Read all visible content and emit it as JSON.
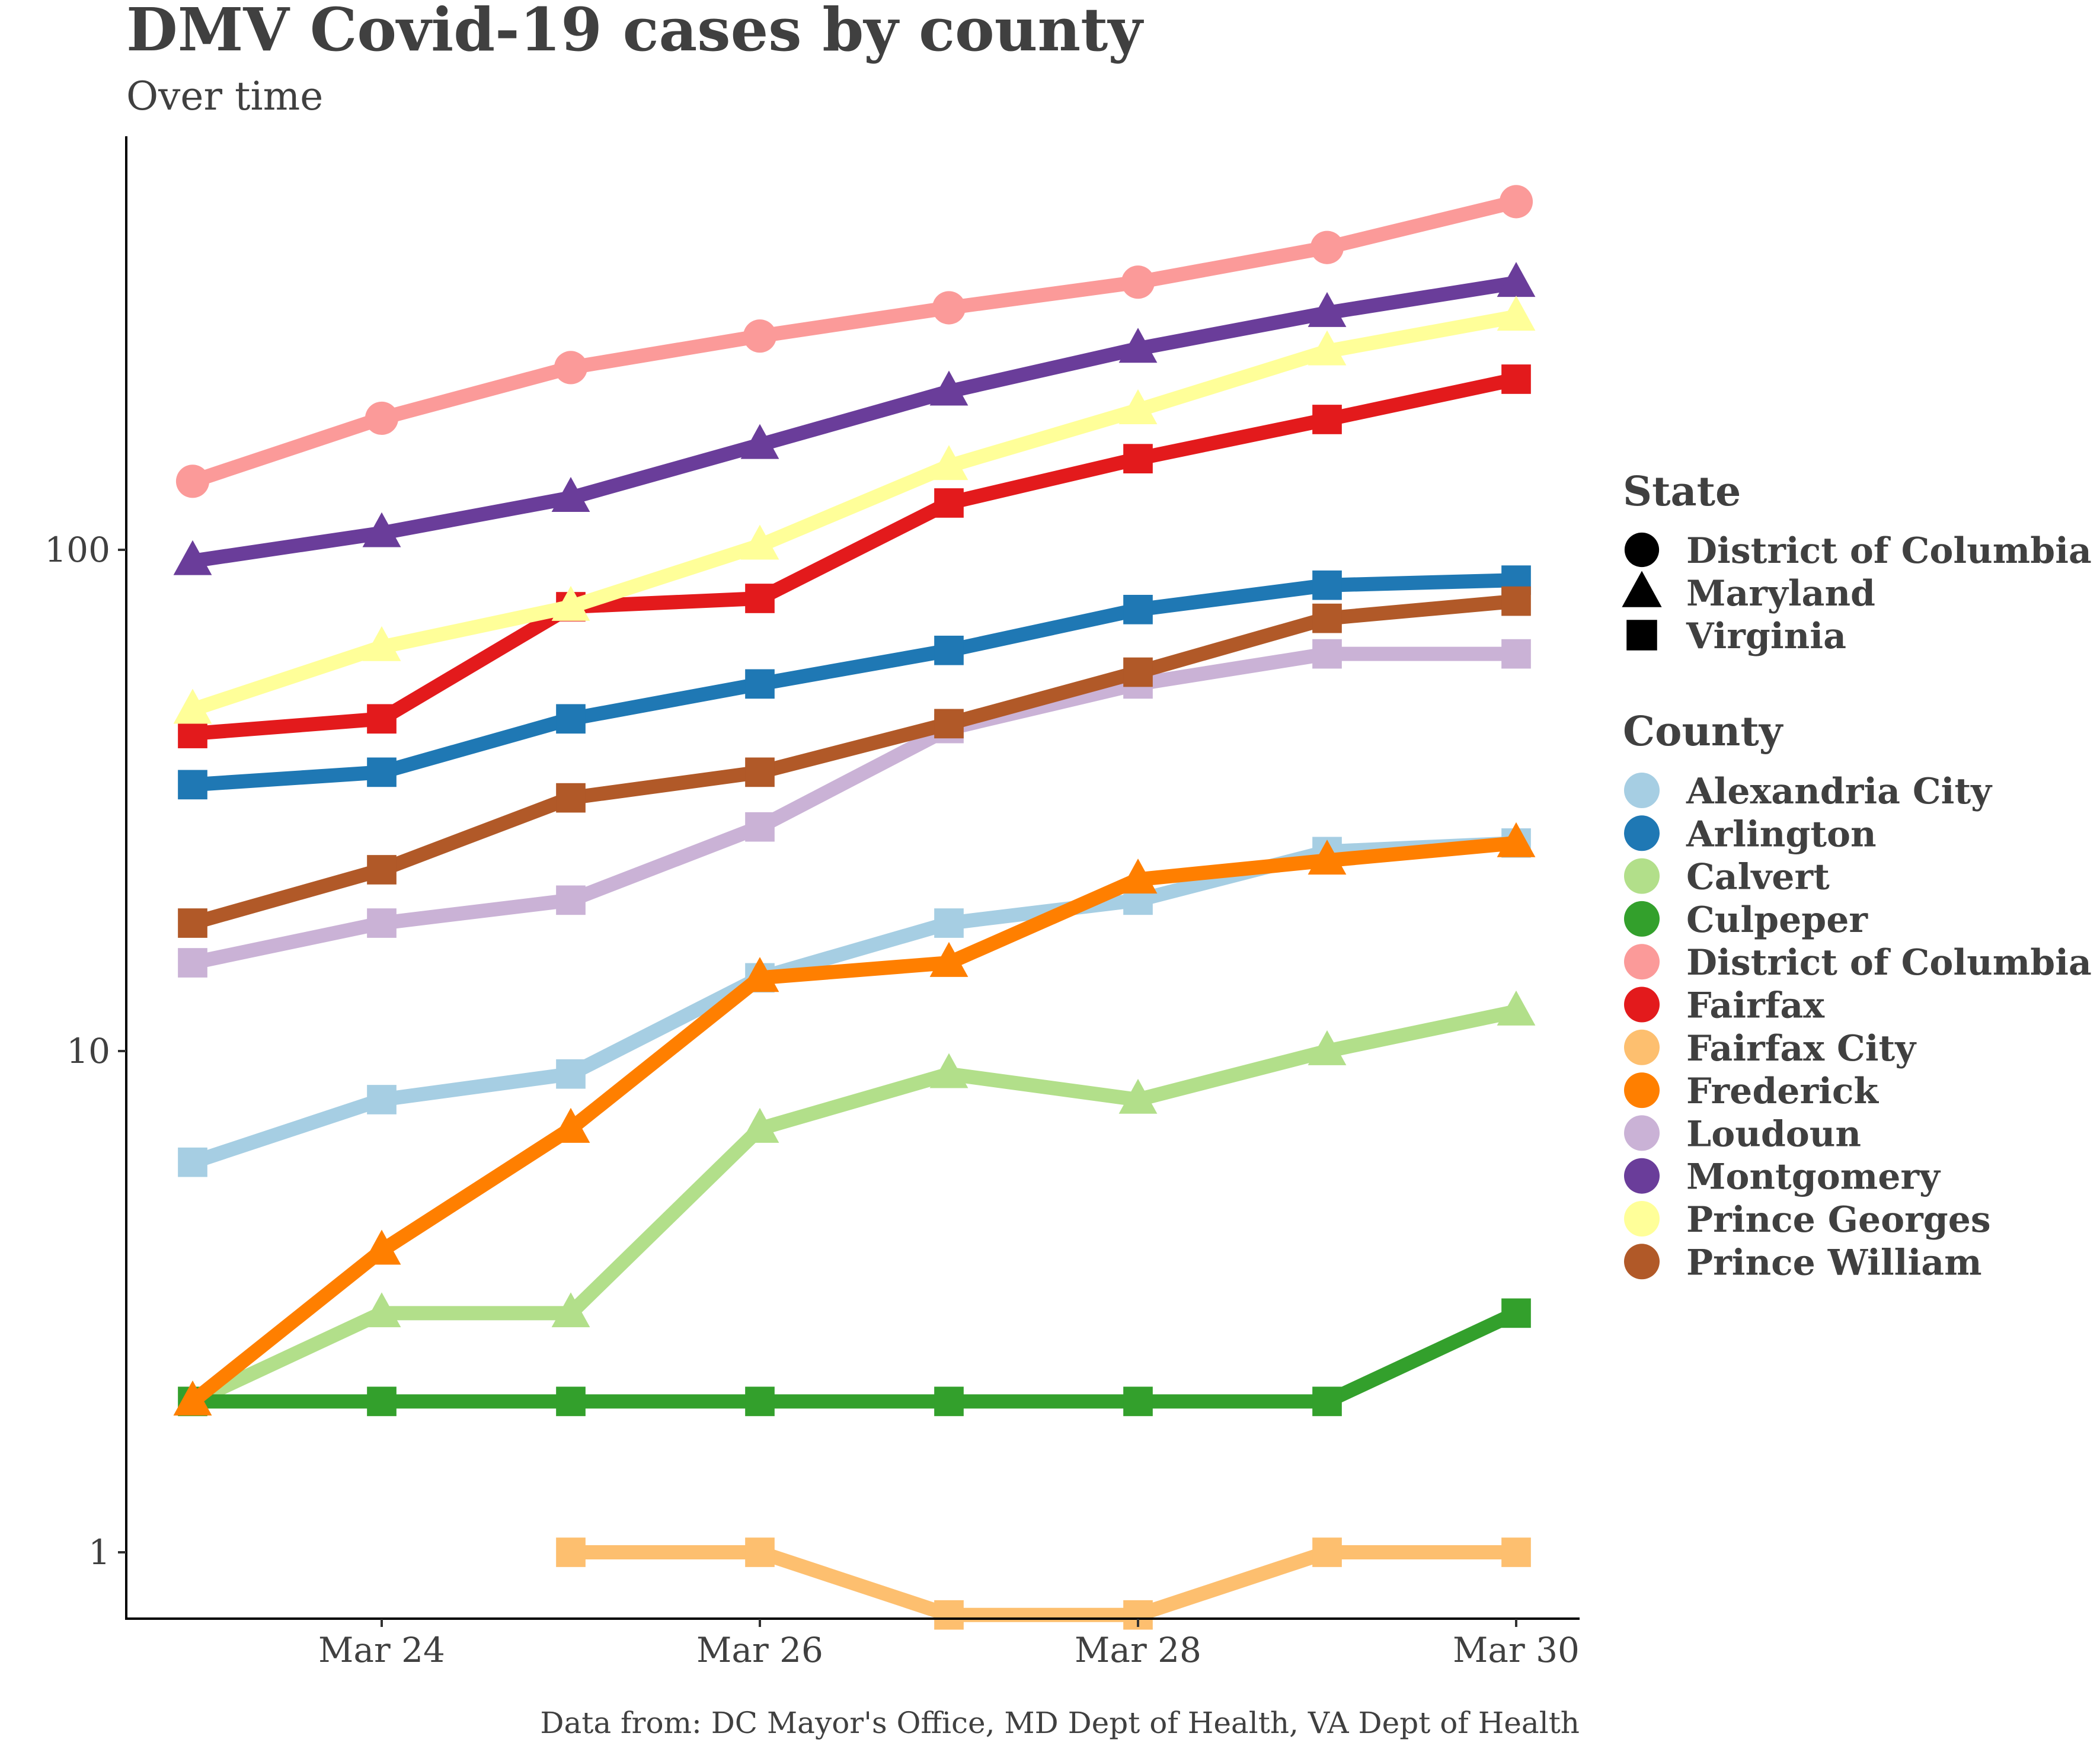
{
  "chart_data": {
    "type": "line",
    "title": "DMV Covid-19 cases by county",
    "subtitle": "Over time",
    "caption": "Data from: DC Mayor's Office, MD Dept of Health, VA Dept of Health",
    "xlabel": "",
    "ylabel": "",
    "y_scale": "log10",
    "ylim": [
      0.8,
      700
    ],
    "xlim": [
      "Mar 22",
      "Mar 30"
    ],
    "x": [
      "Mar 23",
      "Mar 24",
      "Mar 25",
      "Mar 26",
      "Mar 27",
      "Mar 28",
      "Mar 29",
      "Mar 30"
    ],
    "x_ticks": [
      "Mar 24",
      "Mar 26",
      "Mar 28",
      "Mar 30"
    ],
    "y_ticks": [
      {
        "value": 1,
        "label": "1"
      },
      {
        "value": 10,
        "label": "10"
      },
      {
        "value": 100,
        "label": "100"
      }
    ],
    "grid": false,
    "legend_position": "right",
    "state_legend": {
      "title": "State",
      "items": [
        {
          "label": "District of Columbia",
          "shape": "circle"
        },
        {
          "label": "Maryland",
          "shape": "triangle"
        },
        {
          "label": "Virginia",
          "shape": "square"
        }
      ]
    },
    "county_legend": {
      "title": "County"
    },
    "series": [
      {
        "name": "Alexandria City",
        "state": "Virginia",
        "shape": "square",
        "color": "#a6cee3",
        "values": [
          6,
          8,
          9,
          14,
          18,
          20,
          25,
          26
        ]
      },
      {
        "name": "Arlington",
        "state": "Virginia",
        "shape": "square",
        "color": "#1f78b4",
        "values": [
          34,
          36,
          46,
          54,
          63,
          76,
          85,
          87
        ]
      },
      {
        "name": "Calvert",
        "state": "Maryland",
        "shape": "triangle",
        "color": "#b2df8a",
        "values": [
          2,
          3,
          3,
          7,
          9,
          8,
          10,
          12
        ]
      },
      {
        "name": "Culpeper",
        "state": "Virginia",
        "shape": "square",
        "color": "#33a02c",
        "values": [
          2,
          2,
          2,
          2,
          2,
          2,
          2,
          3
        ]
      },
      {
        "name": "District of Columbia",
        "state": "District of Columbia",
        "shape": "circle",
        "color": "#fb9a99",
        "values": [
          137,
          183,
          231,
          267,
          304,
          342,
          401,
          495
        ]
      },
      {
        "name": "Fairfax",
        "state": "Virginia",
        "shape": "square",
        "color": "#e31a1c",
        "values": [
          43,
          46,
          77,
          80,
          124,
          152,
          182,
          219
        ]
      },
      {
        "name": "Fairfax City",
        "state": "Virginia",
        "shape": "square",
        "color": "#fdbf6f",
        "values": [
          null,
          null,
          1,
          1,
          0.75,
          0.75,
          1,
          1
        ]
      },
      {
        "name": "Frederick",
        "state": "Maryland",
        "shape": "triangle",
        "color": "#ff7f00",
        "values": [
          2,
          4,
          7,
          14,
          15,
          22,
          24,
          26
        ]
      },
      {
        "name": "Loudoun",
        "state": "Virginia",
        "shape": "square",
        "color": "#cab2d6",
        "values": [
          15,
          18,
          20,
          28,
          44,
          54,
          62,
          62
        ]
      },
      {
        "name": "Montgomery",
        "state": "Maryland",
        "shape": "triangle",
        "color": "#6a3d9a",
        "values": [
          95,
          108,
          127,
          162,
          207,
          252,
          297,
          341
        ]
      },
      {
        "name": "Prince Georges",
        "state": "Maryland",
        "shape": "triangle",
        "color": "#ffff99",
        "values": [
          48,
          64,
          77,
          102,
          147,
          190,
          249,
          292
        ]
      },
      {
        "name": "Prince William",
        "state": "Virginia",
        "shape": "square",
        "color": "#b15928",
        "values": [
          18,
          23,
          32,
          36,
          45,
          57,
          73,
          79
        ]
      }
    ]
  }
}
